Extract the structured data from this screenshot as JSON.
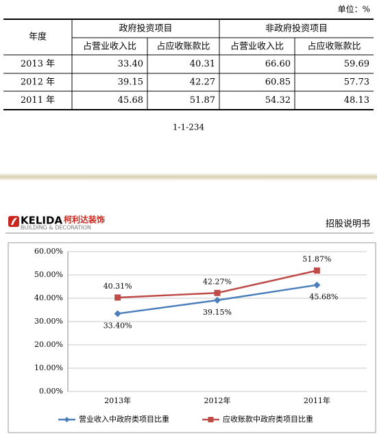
{
  "header": {
    "unit": "单位：%"
  },
  "table": {
    "year_header": "年度",
    "groups": [
      "政府投资项目",
      "非政府投资项目"
    ],
    "subheaders": [
      "占营业收入比",
      "占应收账款比",
      "占营业收入比",
      "占应收账款比"
    ],
    "rows": [
      [
        "2013 年",
        "33.40",
        "40.31",
        "66.60",
        "59.69"
      ],
      [
        "2012 年",
        "39.15",
        "42.27",
        "60.85",
        "57.73"
      ],
      [
        "2011 年",
        "45.68",
        "51.87",
        "54.32",
        "48.13"
      ]
    ]
  },
  "page_number": "1-1-234",
  "logo": {
    "brand": "KELIDA",
    "brand_cn": "柯利达装饰",
    "tagline": "BUILDING & DECORATION"
  },
  "doc_title": "招股说明书",
  "chart_data": {
    "type": "line",
    "categories": [
      "2013年",
      "2012年",
      "2011年"
    ],
    "series": [
      {
        "name": "营业收入中政府类项目比重",
        "color": "#4a7ebb",
        "marker": "diamond",
        "values": [
          33.4,
          39.15,
          45.68
        ],
        "value_labels": [
          "33.40%",
          "39.15%",
          "45.68%"
        ]
      },
      {
        "name": "应收账款中政府类项目比重",
        "color": "#be4b48",
        "marker": "square",
        "values": [
          40.31,
          42.27,
          51.87
        ],
        "value_labels": [
          "40.31%",
          "42.27%",
          "51.87%"
        ]
      }
    ],
    "ylim": [
      0,
      60
    ],
    "yticks": [
      {
        "value": 0,
        "label": "0.00%"
      },
      {
        "value": 10,
        "label": "10.00%"
      },
      {
        "value": 20,
        "label": "20.00%"
      },
      {
        "value": 30,
        "label": "30.00%"
      },
      {
        "value": 40,
        "label": "40.00%"
      },
      {
        "value": 50,
        "label": "50.00%"
      },
      {
        "value": 60,
        "label": "60.00%"
      }
    ],
    "grid": true,
    "legend": "bottom"
  }
}
